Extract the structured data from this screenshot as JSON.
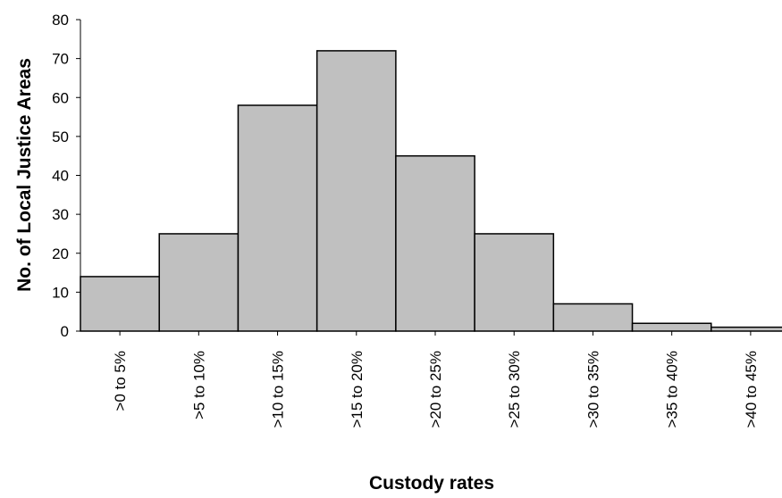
{
  "chart_data": {
    "type": "bar",
    "title": "",
    "xlabel": "Custody rates",
    "ylabel": "No. of Local Justice Areas",
    "categories": [
      ">0 to 5%",
      ">5 to 10%",
      ">10 to 15%",
      ">15 to 20%",
      ">20 to 25%",
      ">25 to 30%",
      ">30 to 35%",
      ">35 to 40%",
      ">40 to 45%"
    ],
    "values": [
      14,
      25,
      58,
      72,
      45,
      25,
      7,
      2,
      1
    ],
    "ylim": [
      0,
      80
    ],
    "yticks": [
      0,
      10,
      20,
      30,
      40,
      50,
      60,
      70,
      80
    ],
    "grid": false,
    "legend": "none",
    "bar_color": "#c0c0c0",
    "bar_edge_color": "#000000"
  }
}
